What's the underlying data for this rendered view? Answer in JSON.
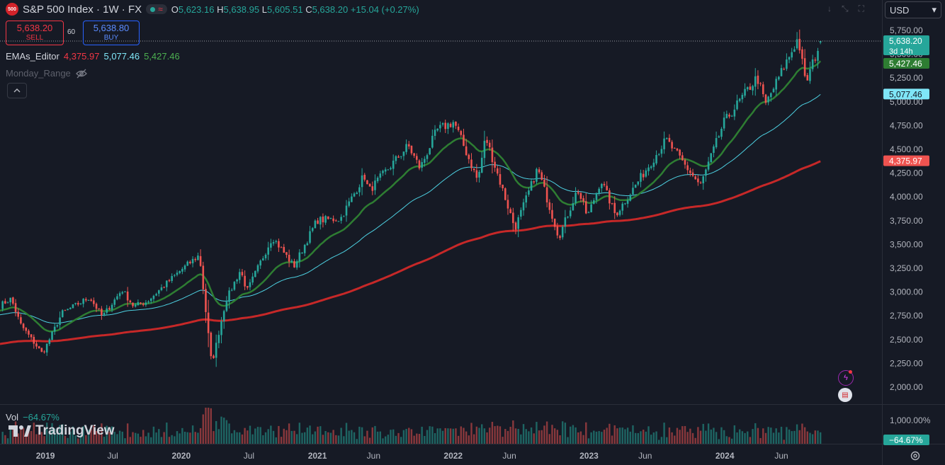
{
  "header": {
    "symbol_badge": "500",
    "title": "S&P 500 Index · 1W · FX",
    "ohlc": {
      "o_label": "O",
      "o": "5,623.16",
      "h_label": "H",
      "h": "5,638.95",
      "l_label": "L",
      "l": "5,605.51",
      "c_label": "C",
      "c": "5,638.20",
      "change": "+15.04 (+0.27%)"
    },
    "status_wave": "≈",
    "currency": "USD",
    "currency_caret": "▾"
  },
  "trade": {
    "sell_price": "5,638.20",
    "sell_label": "SELL",
    "spread": "60",
    "buy_price": "5,638.80",
    "buy_label": "BUY"
  },
  "indicators": {
    "ema_name": "EMAs_Editor",
    "ema_values": [
      "4,375.97",
      "5,077.46",
      "5,427.46"
    ],
    "range_name": "Monday_Range"
  },
  "volume": {
    "label": "Vol",
    "value": "−64.67%",
    "axis_label": "1,000.00%",
    "badge": "−64.67%"
  },
  "logo_text": "TradingView",
  "price_badges": {
    "last": "5,638.20",
    "countdown": "3d 14h",
    "ema_fast": "5,427.46",
    "ema_mid": "5,077.46",
    "ema_slow": "4,375.97"
  },
  "colors": {
    "background": "#161a25",
    "up": "#26a69a",
    "down": "#ef5350",
    "ema_fast": "#2e7d32",
    "ema_mid": "#4dd0e1",
    "ema_slow": "#c62828"
  },
  "icons": [
    "chevron-up-icon",
    "eye-off-icon",
    "bolt-icon",
    "us-flag-icon",
    "settings-icon",
    "download-icon",
    "expand-icon",
    "fullscreen-icon"
  ],
  "chart_data": {
    "type": "candlestick",
    "title": "S&P 500 Index · 1W · FX",
    "y_ticks": [
      "5,750.00",
      "5,500.00",
      "5,250.00",
      "5,000.00",
      "4,750.00",
      "4,500.00",
      "4,250.00",
      "4,000.00",
      "3,750.00",
      "3,500.00",
      "3,250.00",
      "3,000.00",
      "2,750.00",
      "2,500.00",
      "2,250.00",
      "2,000.00"
    ],
    "y_tick_values": [
      5750,
      5500,
      5250,
      5000,
      4750,
      4500,
      4250,
      4000,
      3750,
      3500,
      3250,
      3000,
      2750,
      2500,
      2250,
      2000
    ],
    "ylim": [
      1880,
      5850
    ],
    "x_ticks": [
      "2019",
      "Jul",
      "2020",
      "Jul",
      "2021",
      "Jun",
      "2022",
      "Jun",
      "2023",
      "Jun",
      "2024",
      "Jun"
    ],
    "x_tick_dates": [
      "2019-01-01",
      "2019-07-01",
      "2020-01-01",
      "2020-07-01",
      "2021-01-01",
      "2021-06-01",
      "2022-01-01",
      "2022-06-01",
      "2023-01-01",
      "2023-06-01",
      "2024-01-01",
      "2024-06-01"
    ],
    "x_range": [
      "2018-09-01",
      "2024-11-25"
    ],
    "price_anchors": [
      [
        "2018-09-01",
        2860
      ],
      [
        "2018-10-01",
        2930
      ],
      [
        "2018-10-26",
        2660
      ],
      [
        "2018-12-24",
        2350
      ],
      [
        "2019-02-15",
        2780
      ],
      [
        "2019-04-30",
        2945
      ],
      [
        "2019-06-03",
        2740
      ],
      [
        "2019-07-26",
        3025
      ],
      [
        "2019-08-26",
        2850
      ],
      [
        "2019-10-01",
        2900
      ],
      [
        "2019-12-31",
        3230
      ],
      [
        "2020-02-19",
        3390
      ],
      [
        "2020-03-23",
        2237
      ],
      [
        "2020-04-30",
        2910
      ],
      [
        "2020-06-08",
        3230
      ],
      [
        "2020-06-26",
        3010
      ],
      [
        "2020-09-02",
        3580
      ],
      [
        "2020-10-30",
        3270
      ],
      [
        "2020-12-31",
        3755
      ],
      [
        "2021-03-04",
        3770
      ],
      [
        "2021-05-07",
        4230
      ],
      [
        "2021-05-19",
        4060
      ],
      [
        "2021-09-02",
        4540
      ],
      [
        "2021-10-04",
        4300
      ],
      [
        "2021-11-18",
        4700
      ],
      [
        "2022-01-03",
        4790
      ],
      [
        "2022-03-08",
        4170
      ],
      [
        "2022-03-29",
        4630
      ],
      [
        "2022-06-16",
        3670
      ],
      [
        "2022-08-16",
        4300
      ],
      [
        "2022-10-12",
        3577
      ],
      [
        "2022-12-01",
        4080
      ],
      [
        "2022-12-28",
        3790
      ],
      [
        "2023-02-02",
        4180
      ],
      [
        "2023-03-13",
        3810
      ],
      [
        "2023-07-27",
        4600
      ],
      [
        "2023-10-27",
        4117
      ],
      [
        "2023-12-29",
        4780
      ],
      [
        "2024-03-28",
        5260
      ],
      [
        "2024-04-19",
        4967
      ],
      [
        "2024-07-16",
        5670
      ],
      [
        "2024-08-05",
        5186
      ],
      [
        "2024-09-13",
        5626
      ],
      [
        "2024-09-16",
        5638
      ]
    ],
    "last_candle": {
      "open": 5623.16,
      "high": 5638.95,
      "low": 5605.51,
      "close": 5638.2
    },
    "series": [
      {
        "type": "ema",
        "last": 5427.46,
        "color": "#2e7d32"
      },
      {
        "type": "ema",
        "last": 5077.46,
        "color": "#4dd0e1"
      },
      {
        "type": "ema",
        "last": 4375.97,
        "color": "#c62828"
      }
    ],
    "volume_pane": {
      "label": "Vol",
      "last": "−64.67%",
      "axis_tick": "1,000.00%"
    },
    "grid": false
  }
}
